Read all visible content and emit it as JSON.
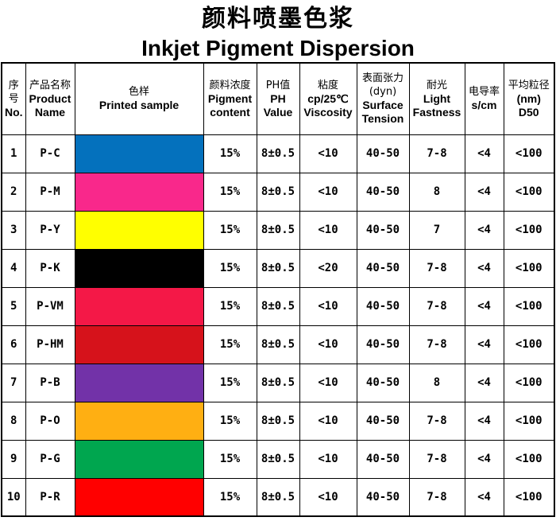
{
  "title": {
    "zh": "颜料喷墨色浆",
    "en": "Inkjet Pigment Dispersion"
  },
  "table": {
    "columns": [
      {
        "key": "no",
        "lines": [
          {
            "t": "序",
            "s": "zh"
          },
          {
            "t": "号",
            "s": "zh"
          },
          {
            "t": "No.",
            "s": "en"
          }
        ]
      },
      {
        "key": "name",
        "lines": [
          {
            "t": "产品名称",
            "s": "zh"
          },
          {
            "t": "Product",
            "s": "en"
          },
          {
            "t": "Name",
            "s": "en"
          }
        ]
      },
      {
        "key": "swatch",
        "lines": [
          {
            "t": "色样",
            "s": "zh"
          },
          {
            "t": "Printed sample",
            "s": "en"
          }
        ]
      },
      {
        "key": "pigment",
        "lines": [
          {
            "t": "颜料浓度",
            "s": "zh"
          },
          {
            "t": "Pigment",
            "s": "en"
          },
          {
            "t": "content",
            "s": "en"
          }
        ]
      },
      {
        "key": "ph",
        "lines": [
          {
            "t": "PH值",
            "s": "zh"
          },
          {
            "t": "PH",
            "s": "en"
          },
          {
            "t": "Value",
            "s": "en"
          }
        ]
      },
      {
        "key": "viscosity",
        "lines": [
          {
            "t": "粘度",
            "s": "zh"
          },
          {
            "t": "cp/25℃",
            "s": "en"
          },
          {
            "t": "Viscosity",
            "s": "en"
          }
        ]
      },
      {
        "key": "surface",
        "lines": [
          {
            "t": "表面张力",
            "s": "zh"
          },
          {
            "t": "(dyn)",
            "s": "zh"
          },
          {
            "t": "Surface",
            "s": "en"
          },
          {
            "t": "Tension",
            "s": "en"
          }
        ]
      },
      {
        "key": "light",
        "lines": [
          {
            "t": "耐光",
            "s": "zh"
          },
          {
            "t": "Light",
            "s": "en"
          },
          {
            "t": "Fastness",
            "s": "en"
          }
        ]
      },
      {
        "key": "conductivity",
        "lines": [
          {
            "t": "电导率",
            "s": "zh"
          },
          {
            "t": "s/cm",
            "s": "en"
          }
        ]
      },
      {
        "key": "d50",
        "lines": [
          {
            "t": "平均粒径",
            "s": "zh"
          },
          {
            "t": "(nm)",
            "s": "en"
          },
          {
            "t": "D50",
            "s": "en"
          }
        ]
      }
    ],
    "rows": [
      {
        "no": "1",
        "name": "P-C",
        "swatch": "#0471BD",
        "pigment": "15%",
        "ph": "8±0.5",
        "viscosity": "<10",
        "surface": "40-50",
        "light": "7-8",
        "conductivity": "<4",
        "d50": "<100"
      },
      {
        "no": "2",
        "name": "P-M",
        "swatch": "#F9288B",
        "pigment": "15%",
        "ph": "8±0.5",
        "viscosity": "<10",
        "surface": "40-50",
        "light": "8",
        "conductivity": "<4",
        "d50": "<100"
      },
      {
        "no": "3",
        "name": "P-Y",
        "swatch": "#FFFF00",
        "pigment": "15%",
        "ph": "8±0.5",
        "viscosity": "<10",
        "surface": "40-50",
        "light": "7",
        "conductivity": "<4",
        "d50": "<100"
      },
      {
        "no": "4",
        "name": "P-K",
        "swatch": "#000000",
        "pigment": "15%",
        "ph": "8±0.5",
        "viscosity": "<20",
        "surface": "40-50",
        "light": "7-8",
        "conductivity": "<4",
        "d50": "<100"
      },
      {
        "no": "5",
        "name": "P-VM",
        "swatch": "#F41847",
        "pigment": "15%",
        "ph": "8±0.5",
        "viscosity": "<10",
        "surface": "40-50",
        "light": "7-8",
        "conductivity": "<4",
        "d50": "<100"
      },
      {
        "no": "6",
        "name": "P-HM",
        "swatch": "#D6121B",
        "pigment": "15%",
        "ph": "8±0.5",
        "viscosity": "<10",
        "surface": "40-50",
        "light": "7-8",
        "conductivity": "<4",
        "d50": "<100"
      },
      {
        "no": "7",
        "name": "P-B",
        "swatch": "#7232A8",
        "pigment": "15%",
        "ph": "8±0.5",
        "viscosity": "<10",
        "surface": "40-50",
        "light": "8",
        "conductivity": "<4",
        "d50": "<100"
      },
      {
        "no": "8",
        "name": "P-O",
        "swatch": "#FFAF12",
        "pigment": "15%",
        "ph": "8±0.5",
        "viscosity": "<10",
        "surface": "40-50",
        "light": "7-8",
        "conductivity": "<4",
        "d50": "<100"
      },
      {
        "no": "9",
        "name": "P-G",
        "swatch": "#00A64F",
        "pigment": "15%",
        "ph": "8±0.5",
        "viscosity": "<10",
        "surface": "40-50",
        "light": "7-8",
        "conductivity": "<4",
        "d50": "<100"
      },
      {
        "no": "10",
        "name": "P-R",
        "swatch": "#FF0000",
        "pigment": "15%",
        "ph": "8±0.5",
        "viscosity": "<10",
        "surface": "40-50",
        "light": "7-8",
        "conductivity": "<4",
        "d50": "<100"
      }
    ]
  }
}
